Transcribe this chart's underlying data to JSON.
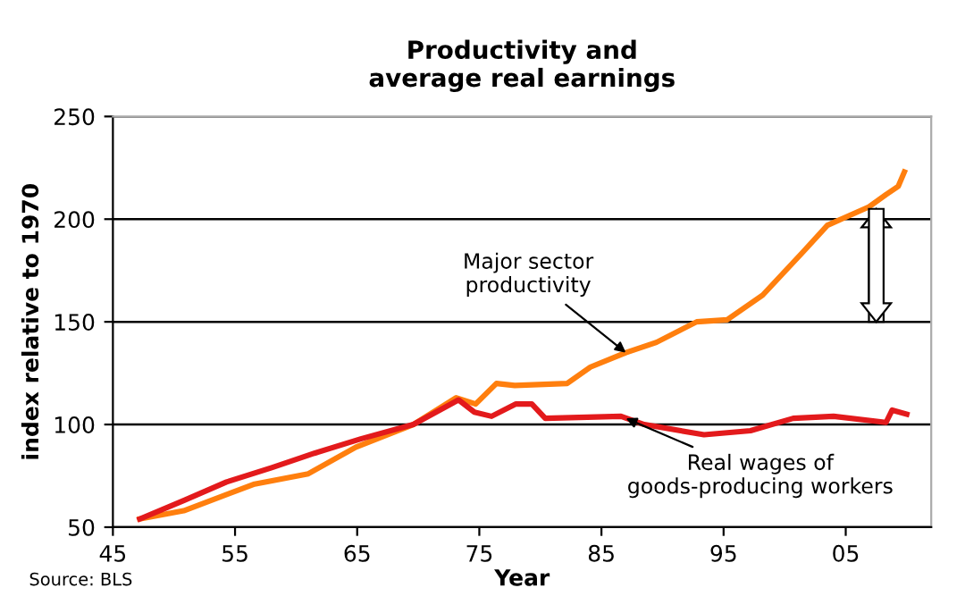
{
  "chart_data": {
    "type": "line",
    "title": "Productivity and\naverage real earnings",
    "xlabel": "Year",
    "ylabel": "index relative to 1970",
    "xlim": [
      1945,
      2012
    ],
    "xticks": [
      {
        "value": 1945,
        "label": "45"
      },
      {
        "value": 1955,
        "label": "55"
      },
      {
        "value": 1965,
        "label": "65"
      },
      {
        "value": 1975,
        "label": "75"
      },
      {
        "value": 1985,
        "label": "85"
      },
      {
        "value": 1995,
        "label": "95"
      },
      {
        "value": 2005,
        "label": "05"
      }
    ],
    "ylim": [
      50,
      250
    ],
    "yticks": [
      50,
      100,
      150,
      200,
      250
    ],
    "grid": "y",
    "line_style": "solid",
    "marker": "none",
    "series": [
      {
        "color": "#ff7f0e",
        "x": [
          1947.2,
          1950.8,
          1956.6,
          1961,
          1964.9,
          1969.6,
          1973.1,
          1974.7,
          1976.4,
          1977.9,
          1982.2,
          1984.1,
          1987,
          1989.5,
          1992.8,
          1995.3,
          1998.2,
          2001.5,
          2003.5,
          2005,
          2006.9,
          2008.3,
          2009.3,
          2009.8
        ],
        "values": [
          54,
          58,
          71,
          76,
          89,
          100,
          113,
          110,
          120,
          119,
          120,
          128,
          135,
          140,
          150,
          151,
          163,
          184,
          197,
          201,
          206,
          212,
          216,
          223
        ]
      },
      {
        "color": "#e31a1c",
        "x": [
          1947.2,
          1950.8,
          1954.3,
          1958,
          1961.5,
          1965.3,
          1969.6,
          1973.3,
          1974.6,
          1976,
          1978,
          1979.3,
          1980.4,
          1986.6,
          1988.5,
          1993.4,
          1997.2,
          2000.7,
          2004,
          2008.3,
          2008.8,
          2010
        ],
        "values": [
          54,
          63,
          72,
          79,
          86,
          93,
          100,
          112,
          106,
          104,
          110,
          110,
          103,
          104,
          100,
          95,
          97,
          103,
          104,
          101,
          107,
          105
        ]
      }
    ],
    "annotations": [
      {
        "text": "Major sector\nproductivity",
        "x": 1987,
        "y": 135
      },
      {
        "text": "Real wages of\ngoods-producing workers",
        "x": 1987,
        "y": 103
      },
      "Source: BLS"
    ]
  }
}
